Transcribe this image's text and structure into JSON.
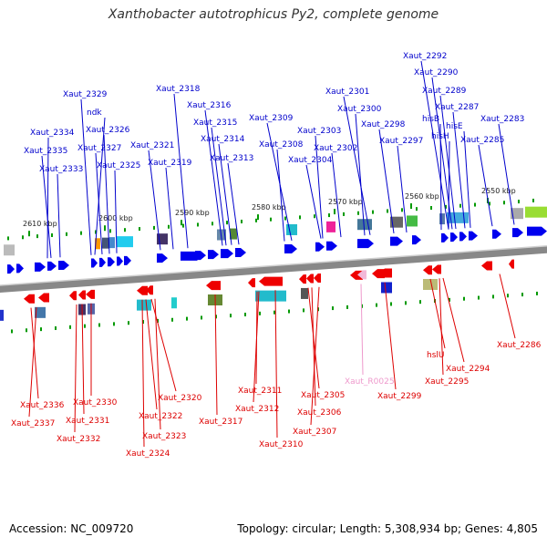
{
  "title": "Xanthobacter autotrophicus Py2, complete genome",
  "footer": {
    "accession": "Accession: NC_009720",
    "topology": "Topology: circular; Length: 5,308,934 bp; Genes: 4,805"
  },
  "colors": {
    "forward_label": "#0000cc",
    "reverse_label": "#dd0000",
    "rna_label": "#ee99cc",
    "forward_gene": "#0000ee",
    "reverse_gene": "#ee0000",
    "backbone": "#888888",
    "tick": "#009900"
  },
  "scale": [
    {
      "label": "2610 kbp"
    },
    {
      "label": "2600 kbp"
    },
    {
      "label": "2590 kbp"
    },
    {
      "label": "2580 kbp"
    },
    {
      "label": "2570 kbp"
    },
    {
      "label": "2560 kbp"
    },
    {
      "label": "2550 kbp"
    }
  ],
  "forward_genes": [
    {
      "name": "Xaut_2292"
    },
    {
      "name": "Xaut_2290"
    },
    {
      "name": "Xaut_2329"
    },
    {
      "name": "Xaut_2318"
    },
    {
      "name": "Xaut_2301"
    },
    {
      "name": "Xaut_2289"
    },
    {
      "name": "ndk"
    },
    {
      "name": "Xaut_2316"
    },
    {
      "name": "Xaut_2300"
    },
    {
      "name": "Xaut_2287"
    },
    {
      "name": "Xaut_2309"
    },
    {
      "name": "Xaut_2315"
    },
    {
      "name": "hisB"
    },
    {
      "name": "Xaut_2283"
    },
    {
      "name": "Xaut_2298"
    },
    {
      "name": "hisE"
    },
    {
      "name": "Xaut_2334"
    },
    {
      "name": "Xaut_2326"
    },
    {
      "name": "Xaut_2303"
    },
    {
      "name": "hisH"
    },
    {
      "name": "Xaut_2314"
    },
    {
      "name": "Xaut_2297"
    },
    {
      "name": "Xaut_2285"
    },
    {
      "name": "Xaut_2321"
    },
    {
      "name": "Xaut_2308"
    },
    {
      "name": "Xaut_2302"
    },
    {
      "name": "Xaut_2335"
    },
    {
      "name": "Xaut_2327"
    },
    {
      "name": "Xaut_2313"
    },
    {
      "name": "Xaut_2304"
    },
    {
      "name": "Xaut_2319"
    },
    {
      "name": "Xaut_2333"
    },
    {
      "name": "Xaut_2325"
    }
  ],
  "reverse_genes": [
    {
      "name": "Xaut_2286"
    },
    {
      "name": "hslU"
    },
    {
      "name": "Xaut_2294"
    },
    {
      "name": "Xaut_R0025"
    },
    {
      "name": "Xaut_2295"
    },
    {
      "name": "Xaut_2311"
    },
    {
      "name": "Xaut_2305"
    },
    {
      "name": "Xaut_2299"
    },
    {
      "name": "Xaut_2320"
    },
    {
      "name": "Xaut_2336"
    },
    {
      "name": "Xaut_2330"
    },
    {
      "name": "Xaut_2312"
    },
    {
      "name": "Xaut_2306"
    },
    {
      "name": "Xaut_2317"
    },
    {
      "name": "Xaut_2322"
    },
    {
      "name": "Xaut_2331"
    },
    {
      "name": "Xaut_2337"
    },
    {
      "name": "Xaut_2307"
    },
    {
      "name": "Xaut_2323"
    },
    {
      "name": "Xaut_2332"
    },
    {
      "name": "Xaut_2310"
    },
    {
      "name": "Xaut_2324"
    }
  ]
}
